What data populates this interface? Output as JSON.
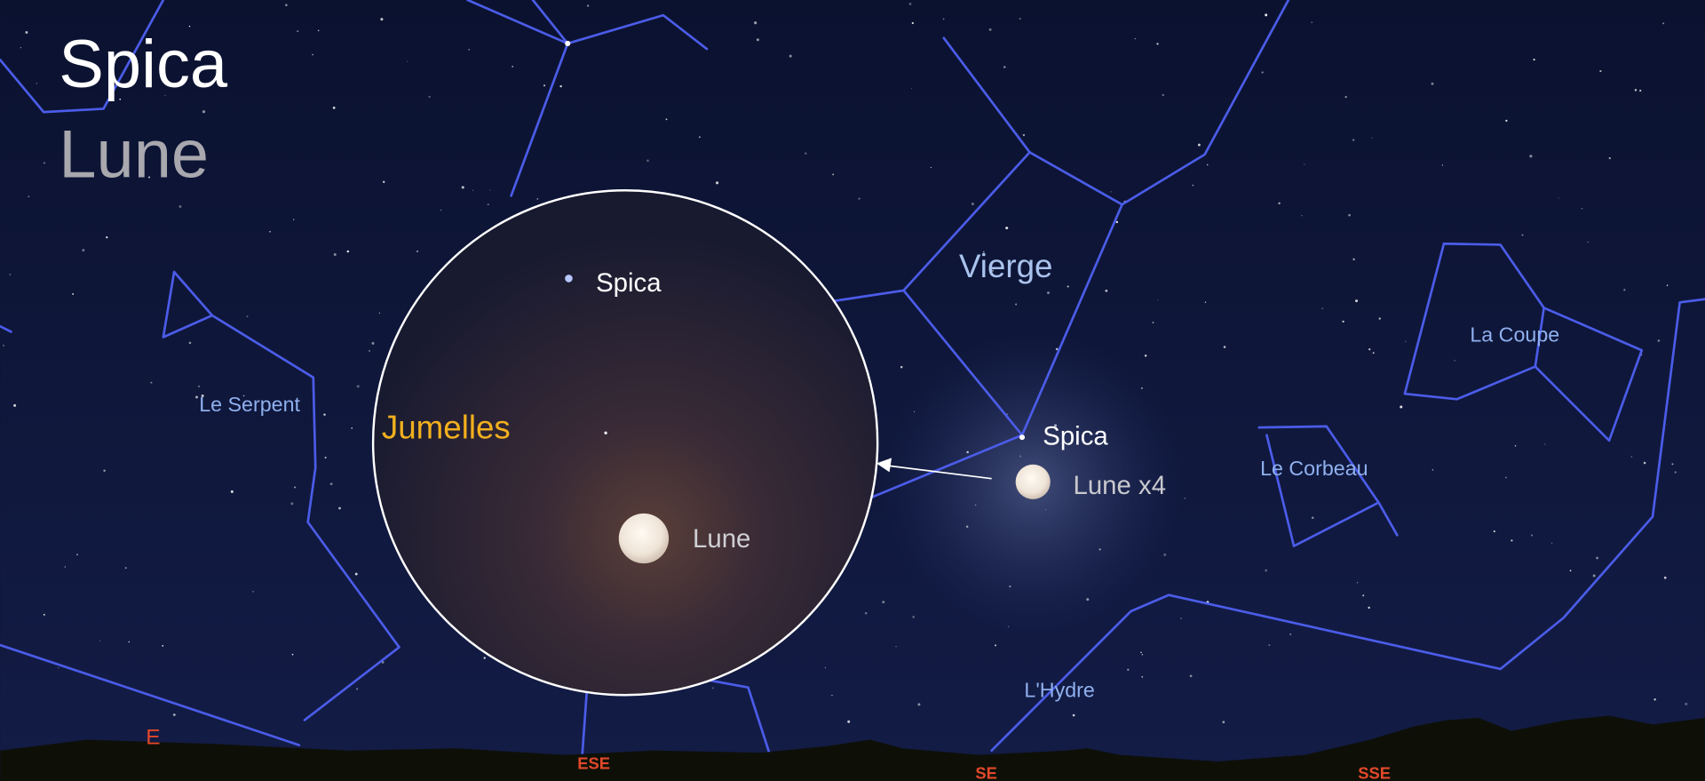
{
  "header": {
    "title": "Spica",
    "subtitle": "Lune"
  },
  "constellations": [
    {
      "label": "Vierge"
    },
    {
      "label": "La Coupe"
    },
    {
      "label": "Le Serpent"
    },
    {
      "label": "Le Corbeau"
    },
    {
      "label": "L'Hydre"
    }
  ],
  "binocular_view": {
    "label": "Jumelles",
    "objects": [
      {
        "label": "Spica"
      },
      {
        "label": "Lune"
      }
    ]
  },
  "sky_objects": [
    {
      "label": "Spica"
    },
    {
      "label": "Lune x4"
    }
  ],
  "horizon": {
    "directions": [
      "E",
      "ESE",
      "SE",
      "SSE"
    ]
  }
}
